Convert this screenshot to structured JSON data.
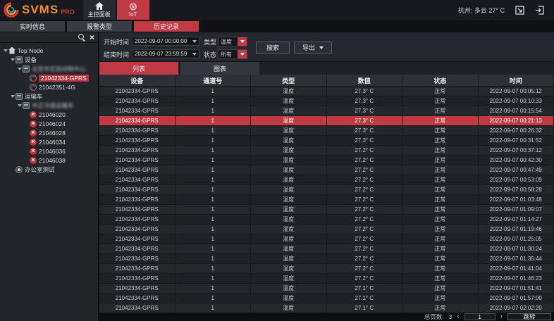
{
  "brand": {
    "name": "SVMS",
    "suffix": "PRO"
  },
  "topbar": {
    "nav": [
      {
        "label": "主控面板",
        "icon": "home"
      },
      {
        "label": "IoT",
        "icon": "iot",
        "active": true
      }
    ],
    "weather": "杭州: 多云  27° C"
  },
  "subnav": {
    "items": [
      {
        "label": "实时信息"
      },
      {
        "label": "报警类型"
      },
      {
        "label": "历史记录",
        "active": true
      }
    ]
  },
  "sidebar": {
    "tree": [
      {
        "label": "Top Node",
        "icon": "home",
        "level": 0,
        "expandable": true
      },
      {
        "label": "设备",
        "icon": "group",
        "level": 1,
        "expandable": true
      },
      {
        "label": "北京市实验动物中心",
        "icon": "group",
        "level": 2,
        "expandable": true,
        "blurred": true
      },
      {
        "label": "21042334-GPRS",
        "icon": "device",
        "level": 3,
        "selected": true
      },
      {
        "label": "21042351-4G",
        "icon": "device",
        "level": 3
      },
      {
        "label": "运输车",
        "icon": "group",
        "level": 1,
        "expandable": true
      },
      {
        "label": "中正冷链运输车",
        "icon": "group",
        "level": 2,
        "expandable": true,
        "blurred": true
      },
      {
        "label": "21046020",
        "icon": "device-off",
        "level": 3
      },
      {
        "label": "21046024",
        "icon": "device-off",
        "level": 3
      },
      {
        "label": "21046028",
        "icon": "device-off",
        "level": 3
      },
      {
        "label": "21046034",
        "icon": "device-off",
        "level": 3
      },
      {
        "label": "21046036",
        "icon": "device-off",
        "level": 3
      },
      {
        "label": "21046038",
        "icon": "device-off",
        "level": 3
      },
      {
        "label": "办公室测试",
        "icon": "device-idle",
        "level": 1
      }
    ]
  },
  "filters": {
    "start_label": "开始时间",
    "start_value": "2022-09-07 00:00:00",
    "end_label": "结束时间",
    "end_value": "2022-09-07 23:59:59",
    "type_label": "类型",
    "type_value": "温度",
    "status_label": "状态",
    "status_value": "所有",
    "search_label": "搜索",
    "export_label": "导出"
  },
  "view_tabs": [
    {
      "label": "列表",
      "active": true
    },
    {
      "label": "图表"
    }
  ],
  "table": {
    "columns": [
      "设备",
      "通道号",
      "类型",
      "数值",
      "状态",
      "时间"
    ],
    "selected_index": 3,
    "rows": [
      [
        "21042334-GPRS",
        "1",
        "温度",
        "27.3° C",
        "正常",
        "2022-09-07 00:05:12"
      ],
      [
        "21042334-GPRS",
        "1",
        "温度",
        "27.3° C",
        "正常",
        "2022-09-07 00:10:33"
      ],
      [
        "21042334-GPRS",
        "1",
        "温度",
        "27.3° C",
        "正常",
        "2022-09-07 00:15:54"
      ],
      [
        "21042334-GPRS",
        "1",
        "温度",
        "27.3° C",
        "正常",
        "2022-09-07 00:21:13"
      ],
      [
        "21042334-GPRS",
        "1",
        "温度",
        "27.3° C",
        "正常",
        "2022-09-07 00:26:32"
      ],
      [
        "21042334-GPRS",
        "1",
        "温度",
        "27.3° C",
        "正常",
        "2022-09-07 00:31:52"
      ],
      [
        "21042334-GPRS",
        "1",
        "温度",
        "27.2° C",
        "正常",
        "2022-09-07 00:37:12"
      ],
      [
        "21042334-GPRS",
        "1",
        "温度",
        "27.2° C",
        "正常",
        "2022-09-07 00:42:30"
      ],
      [
        "21042334-GPRS",
        "1",
        "温度",
        "27.2° C",
        "正常",
        "2022-09-07 00:47:49"
      ],
      [
        "21042334-GPRS",
        "1",
        "温度",
        "27.2° C",
        "正常",
        "2022-09-07 00:53:09"
      ],
      [
        "21042334-GPRS",
        "1",
        "温度",
        "27.2° C",
        "正常",
        "2022-09-07 00:58:28"
      ],
      [
        "21042334-GPRS",
        "1",
        "温度",
        "27.2° C",
        "正常",
        "2022-09-07 01:03:48"
      ],
      [
        "21042334-GPRS",
        "1",
        "温度",
        "27.2° C",
        "正常",
        "2022-09-07 01:09:07"
      ],
      [
        "21042334-GPRS",
        "1",
        "温度",
        "27.2° C",
        "正常",
        "2022-09-07 01:14:27"
      ],
      [
        "21042334-GPRS",
        "1",
        "温度",
        "27.2° C",
        "正常",
        "2022-09-07 01:19:46"
      ],
      [
        "21042334-GPRS",
        "1",
        "温度",
        "27.2° C",
        "正常",
        "2022-09-07 01:25:05"
      ],
      [
        "21042334-GPRS",
        "1",
        "温度",
        "27.2° C",
        "正常",
        "2022-09-07 01:30:24"
      ],
      [
        "21042334-GPRS",
        "1",
        "温度",
        "27.2° C",
        "正常",
        "2022-09-07 01:35:44"
      ],
      [
        "21042334-GPRS",
        "1",
        "温度",
        "27.2° C",
        "正常",
        "2022-09-07 01:41:04"
      ],
      [
        "21042334-GPRS",
        "1",
        "温度",
        "27.2° C",
        "正常",
        "2022-09-07 01:46:23"
      ],
      [
        "21042334-GPRS",
        "1",
        "温度",
        "27.1° C",
        "正常",
        "2022-09-07 01:51:41"
      ],
      [
        "21042334-GPRS",
        "1",
        "温度",
        "27.1° C",
        "正常",
        "2022-09-07 01:57:00"
      ],
      [
        "21042334-GPRS",
        "1",
        "温度",
        "27.1° C",
        "正常",
        "2022-09-07 02:02:20"
      ]
    ]
  },
  "pagination": {
    "total_label": "总页数:",
    "total_pages": "3",
    "prev": "‹",
    "current_page": "1",
    "next": "›",
    "jump_label": "跳转"
  }
}
